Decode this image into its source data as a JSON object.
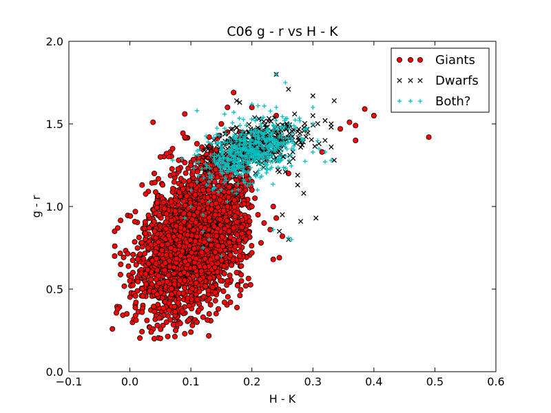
{
  "chart_data": {
    "type": "scatter",
    "title": "C06 g - r vs H - K",
    "xlabel": "H - K",
    "ylabel": "g - r",
    "xlim": [
      -0.1,
      0.6
    ],
    "ylim": [
      0.0,
      2.0
    ],
    "xticks": [
      -0.1,
      0.0,
      0.1,
      0.2,
      0.3,
      0.4,
      0.5,
      0.6
    ],
    "yticks": [
      0.0,
      0.5,
      1.0,
      1.5,
      2.0
    ],
    "xtick_labels": [
      "−0.1",
      "0.0",
      "0.1",
      "0.2",
      "0.3",
      "0.4",
      "0.5",
      "0.6"
    ],
    "ytick_labels": [
      "0.0",
      "0.5",
      "1.0",
      "1.5",
      "2.0"
    ],
    "grid": false,
    "legend_position": "top-right",
    "series": [
      {
        "name": "Giants",
        "marker": "circle",
        "color": "#ff0000",
        "edge_color": "#000000",
        "cluster": {
          "count": 2600,
          "center": [
            0.105,
            0.82
          ],
          "sd": [
            0.045,
            0.21
          ],
          "slope": 2.2,
          "xlim": [
            -0.03,
            0.2
          ],
          "ylim": [
            0.2,
            1.45
          ],
          "seed": 11
        },
        "points": [
          [
            0.038,
            1.51
          ],
          [
            0.09,
            1.56
          ],
          [
            0.17,
            1.69
          ],
          [
            0.16,
            1.6
          ],
          [
            0.2,
            1.6
          ],
          [
            0.24,
            1.55
          ],
          [
            0.385,
            1.59
          ],
          [
            0.4,
            1.55
          ],
          [
            0.36,
            1.51
          ],
          [
            0.37,
            1.49
          ],
          [
            0.49,
            1.42
          ],
          [
            0.345,
            1.47
          ],
          [
            0.37,
            1.4
          ],
          [
            0.315,
            1.33
          ],
          [
            0.26,
            1.2
          ],
          [
            0.235,
            1.0
          ],
          [
            0.24,
            0.93
          ],
          [
            0.23,
            0.86
          ],
          [
            0.25,
            0.82
          ],
          [
            0.245,
            0.69
          ],
          [
            0.235,
            0.68
          ],
          [
            0.215,
            0.78
          ],
          [
            0.2,
            0.72
          ],
          [
            0.22,
            0.9
          ],
          [
            0.21,
            0.95
          ],
          [
            0.19,
            0.52
          ],
          [
            0.14,
            0.48
          ],
          [
            0.13,
            0.35
          ],
          [
            0.12,
            0.33
          ],
          [
            0.1,
            0.24
          ],
          [
            0.09,
            0.23
          ],
          [
            0.04,
            0.2
          ],
          [
            0.035,
            0.24
          ],
          [
            -0.02,
            0.38
          ],
          [
            -0.005,
            0.35
          ],
          [
            -0.02,
            0.87
          ],
          [
            -0.025,
            0.85
          ],
          [
            -0.025,
            0.7
          ],
          [
            -0.015,
            0.65
          ],
          [
            0.02,
            1.13
          ],
          [
            0.04,
            1.2
          ],
          [
            0.05,
            1.3
          ],
          [
            0.06,
            1.32
          ],
          [
            0.09,
            1.42
          ],
          [
            0.1,
            1.25
          ],
          [
            0.18,
            1.45
          ],
          [
            0.2,
            1.45
          ],
          [
            0.2,
            1.3
          ],
          [
            0.19,
            1.25
          ],
          [
            0.2,
            1.1
          ],
          [
            0.15,
            1.15
          ],
          [
            0.16,
            1.0
          ],
          [
            0.14,
            0.95
          ],
          [
            0.155,
            0.42
          ],
          [
            0.145,
            0.38
          ],
          [
            0.11,
            0.3
          ],
          [
            0.075,
            0.25
          ],
          [
            0.06,
            0.3
          ],
          [
            0.045,
            0.28
          ],
          [
            0.02,
            0.36
          ],
          [
            0.01,
            0.42
          ],
          [
            0.0,
            0.55
          ],
          [
            0.005,
            0.6
          ],
          [
            0.16,
            0.55
          ],
          [
            0.175,
            0.6
          ],
          [
            0.18,
            0.7
          ],
          [
            0.19,
            0.8
          ],
          [
            0.17,
            0.87
          ],
          [
            0.2,
            1.0
          ],
          [
            0.205,
            1.05
          ],
          [
            0.13,
            1.2
          ],
          [
            0.12,
            1.1
          ],
          [
            0.08,
            1.28
          ],
          [
            0.07,
            1.35
          ],
          [
            0.11,
            1.38
          ],
          [
            0.13,
            1.42
          ],
          [
            0.15,
            1.5
          ],
          [
            0.16,
            1.45
          ]
        ]
      },
      {
        "name": "Dwarfs",
        "marker": "x",
        "color": "#000000",
        "cluster": {
          "count": 380,
          "center": [
            0.205,
            1.36
          ],
          "sd": [
            0.036,
            0.07
          ],
          "slope": 0.9,
          "xlim": [
            0.12,
            0.32
          ],
          "ylim": [
            1.15,
            1.6
          ],
          "seed": 23
        },
        "points": [
          [
            0.24,
            1.8
          ],
          [
            0.26,
            1.71
          ],
          [
            0.3,
            1.67
          ],
          [
            0.335,
            1.64
          ],
          [
            0.175,
            1.64
          ],
          [
            0.18,
            1.63
          ],
          [
            0.27,
            1.56
          ],
          [
            0.3,
            1.55
          ],
          [
            0.32,
            1.52
          ],
          [
            0.33,
            1.5
          ],
          [
            0.33,
            1.48
          ],
          [
            0.335,
            1.28
          ],
          [
            0.275,
            1.19
          ],
          [
            0.255,
            1.21
          ],
          [
            0.245,
            1.21
          ],
          [
            0.275,
            1.13
          ],
          [
            0.285,
            1.08
          ],
          [
            0.305,
            0.93
          ],
          [
            0.28,
            0.91
          ],
          [
            0.25,
            0.95
          ],
          [
            0.245,
            0.85
          ],
          [
            0.26,
            0.8
          ],
          [
            0.16,
            1.35
          ],
          [
            0.17,
            1.25
          ],
          [
            0.15,
            1.3
          ],
          [
            0.14,
            1.28
          ],
          [
            0.33,
            1.36
          ],
          [
            0.31,
            1.38
          ],
          [
            0.32,
            1.4
          ]
        ]
      },
      {
        "name": "Both?",
        "marker": "plus",
        "color": "#00bfbf",
        "cluster": {
          "count": 520,
          "center": [
            0.2,
            1.34
          ],
          "sd": [
            0.038,
            0.085
          ],
          "slope": 1.0,
          "xlim": [
            0.1,
            0.33
          ],
          "ylim": [
            1.05,
            1.62
          ],
          "seed": 37
        },
        "points": [
          [
            0.24,
            1.8
          ],
          [
            0.255,
            1.75
          ],
          [
            0.11,
            1.58
          ],
          [
            0.2,
            1.62
          ],
          [
            0.21,
            1.61
          ],
          [
            0.24,
            1.6
          ],
          [
            0.3,
            1.6
          ],
          [
            0.3,
            1.5
          ],
          [
            0.32,
            1.33
          ],
          [
            0.3,
            1.33
          ],
          [
            0.33,
            1.28
          ],
          [
            0.32,
            1.27
          ],
          [
            0.07,
            1.28
          ],
          [
            0.085,
            1.29
          ],
          [
            0.13,
            1.2
          ],
          [
            0.135,
            1.1
          ],
          [
            0.15,
            1.1
          ],
          [
            0.16,
            1.03
          ],
          [
            0.13,
            1.03
          ],
          [
            0.1,
            1.0
          ],
          [
            0.12,
            0.95
          ],
          [
            0.09,
            0.93
          ],
          [
            0.12,
            0.85
          ],
          [
            0.13,
            0.8
          ],
          [
            0.235,
            0.86
          ],
          [
            0.26,
            0.81
          ],
          [
            0.265,
            0.8
          ],
          [
            0.15,
            0.7
          ],
          [
            0.12,
            0.75
          ],
          [
            0.1,
            1.1
          ],
          [
            0.11,
            1.15
          ]
        ]
      }
    ]
  }
}
